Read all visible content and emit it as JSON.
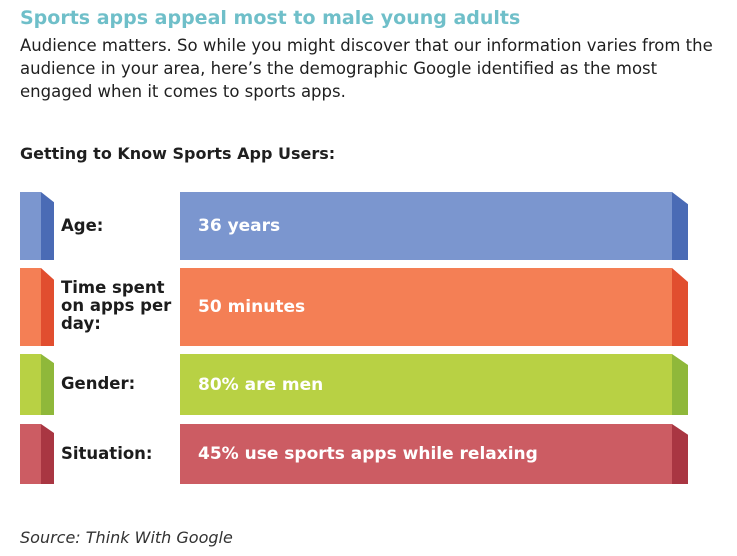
{
  "header": {
    "title": "Sports apps appeal most to male young adults",
    "intro": "Audience matters. So while you might discover that our information varies from the audience in your area, here’s the demographic Google identified as the most engaged when it comes to sports apps."
  },
  "subheading": "Getting to Know Sports App Users:",
  "rows": [
    {
      "label": "Age:",
      "value": "36 years",
      "color": "#7b96cf",
      "dark": "#4a6bb5"
    },
    {
      "label": "Time spent on apps per day:",
      "value": "50 minutes",
      "color": "#f47f55",
      "dark": "#e14e2f"
    },
    {
      "label": "Gender:",
      "value": "80% are men",
      "color": "#b8d144",
      "dark": "#8fb83a"
    },
    {
      "label": "Situation:",
      "value": "45% use sports apps while relaxing",
      "color": "#cc5c63",
      "dark": "#a93642"
    }
  ],
  "source": "Source: Think With Google"
}
